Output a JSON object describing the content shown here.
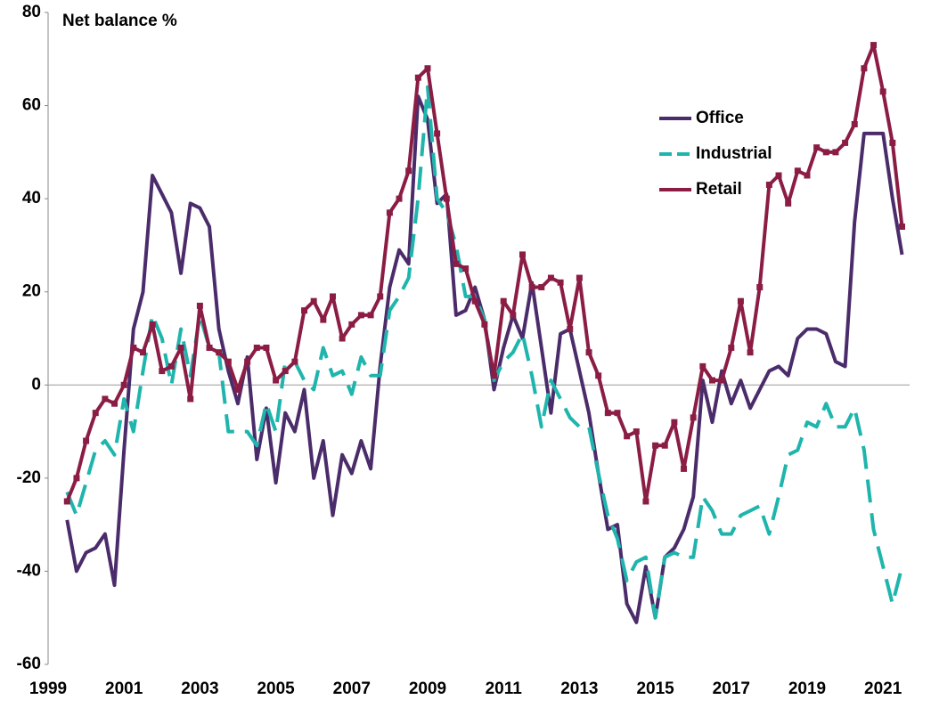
{
  "chart_data": {
    "type": "line",
    "ylabel": "Net balance %",
    "x": [
      1999.5,
      1999.75,
      2000,
      2000.25,
      2000.5,
      2000.75,
      2001,
      2001.25,
      2001.5,
      2001.75,
      2002,
      2002.25,
      2002.5,
      2002.75,
      2003,
      2003.25,
      2003.5,
      2003.75,
      2004,
      2004.25,
      2004.5,
      2004.75,
      2005,
      2005.25,
      2005.5,
      2005.75,
      2006,
      2006.25,
      2006.5,
      2006.75,
      2007,
      2007.25,
      2007.5,
      2007.75,
      2008,
      2008.25,
      2008.5,
      2008.75,
      2009,
      2009.25,
      2009.5,
      2009.75,
      2010,
      2010.25,
      2010.5,
      2010.75,
      2011,
      2011.25,
      2011.5,
      2011.75,
      2012,
      2012.25,
      2012.5,
      2012.75,
      2013,
      2013.25,
      2013.5,
      2013.75,
      2014,
      2014.25,
      2014.5,
      2014.75,
      2015,
      2015.25,
      2015.5,
      2015.75,
      2016,
      2016.25,
      2016.5,
      2016.75,
      2017,
      2017.25,
      2017.5,
      2017.75,
      2018,
      2018.25,
      2018.5,
      2018.75,
      2019,
      2019.25,
      2019.5,
      2019.75,
      2020,
      2020.25,
      2020.5,
      2020.75,
      2021,
      2021.25,
      2021.5
    ],
    "series": [
      {
        "name": "Office",
        "color": "#4b2c6b",
        "dash": "solid",
        "markers": false,
        "values": [
          -29,
          -40,
          -36,
          -35,
          -32,
          -43,
          -14,
          12,
          20,
          45,
          41,
          37,
          24,
          39,
          38,
          34,
          12,
          3,
          -4,
          6,
          -16,
          -5,
          -21,
          -6,
          -10,
          -1,
          -20,
          -12,
          -28,
          -15,
          -19,
          -12,
          -18,
          4,
          21,
          29,
          26,
          62,
          57,
          39,
          41,
          15,
          16,
          21,
          14,
          -1,
          8,
          15,
          10,
          22,
          8,
          -6,
          11,
          12,
          3,
          -6,
          -19,
          -31,
          -30,
          -47,
          -51,
          -39,
          -50,
          -37,
          -35,
          -31,
          -24,
          1,
          -8,
          3,
          -4,
          1,
          -5,
          -1,
          3,
          4,
          2,
          10,
          12,
          12,
          11,
          5,
          4,
          35,
          54,
          54,
          54,
          40,
          28
        ]
      },
      {
        "name": "Industrial",
        "color": "#1fb5ad",
        "dash": "dashed",
        "markers": false,
        "values": [
          -23,
          -28,
          -21,
          -14,
          -12,
          -15,
          -3,
          -10,
          3,
          15,
          10,
          0,
          12,
          2,
          15,
          8,
          7,
          -10,
          -10,
          -10,
          -13,
          -4,
          -10,
          5,
          5,
          1,
          -1,
          8,
          2,
          3,
          -2,
          6,
          2,
          2,
          16,
          19,
          23,
          40,
          64,
          40,
          37,
          30,
          19,
          19,
          14,
          1,
          5,
          7,
          11,
          2,
          -9,
          1,
          -3,
          -7,
          -9,
          -9,
          -19,
          -28,
          -33,
          -42,
          -38,
          -37,
          -50,
          -37,
          -36,
          -37,
          -37,
          -24,
          -27,
          -32,
          -32,
          -28,
          -27,
          -26,
          -32,
          -24,
          -15,
          -14,
          -8,
          -9,
          -4,
          -9,
          -9,
          -5,
          -14,
          -31,
          -39,
          -47,
          -39
        ]
      },
      {
        "name": "Retail",
        "color": "#8b1d45",
        "dash": "solid",
        "markers": true,
        "values": [
          -25,
          -20,
          -12,
          -6,
          -3,
          -4,
          0,
          8,
          7,
          13,
          3,
          4,
          8,
          -3,
          17,
          8,
          7,
          5,
          -1,
          5,
          8,
          8,
          1,
          3,
          5,
          16,
          18,
          14,
          19,
          10,
          13,
          15,
          15,
          19,
          37,
          40,
          46,
          66,
          68,
          54,
          40,
          26,
          25,
          18,
          13,
          2,
          18,
          15,
          28,
          21,
          21,
          23,
          22,
          12,
          23,
          7,
          2,
          -6,
          -6,
          -11,
          -10,
          -25,
          -13,
          -13,
          -8,
          -18,
          -7,
          4,
          1,
          1,
          8,
          18,
          7,
          21,
          43,
          45,
          39,
          46,
          45,
          51,
          50,
          50,
          52,
          56,
          68,
          73,
          63,
          52,
          34
        ]
      }
    ],
    "xlim": [
      1999,
      2021.7
    ],
    "xticks": [
      1999,
      2001,
      2003,
      2005,
      2007,
      2009,
      2011,
      2013,
      2015,
      2017,
      2019,
      2021
    ],
    "ylim": [
      -60,
      80
    ],
    "yticks": [
      -60,
      -40,
      -20,
      0,
      20,
      40,
      60,
      80
    ],
    "zero_line": true
  }
}
